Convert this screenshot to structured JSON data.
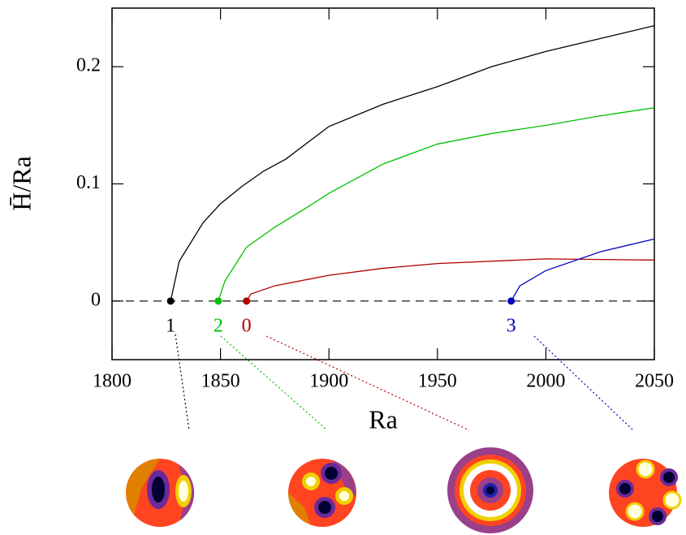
{
  "chart_data": {
    "type": "line",
    "xlabel": "Ra",
    "ylabel": "H̄/Ra",
    "xlim": [
      1800,
      2050
    ],
    "ylim": [
      -0.05,
      0.25
    ],
    "xticks": [
      1800,
      1850,
      1900,
      1950,
      2000,
      2050
    ],
    "yticks": [
      0,
      0.1,
      0.2
    ],
    "series": [
      {
        "name": "1",
        "color": "#000000",
        "x": [
          1827,
          1831,
          1842,
          1850,
          1860,
          1870,
          1880,
          1900,
          1925,
          1950,
          1975,
          2000,
          2025,
          2050
        ],
        "values": [
          0,
          0.034,
          0.067,
          0.083,
          0.098,
          0.111,
          0.121,
          0.149,
          0.168,
          0.183,
          0.2,
          0.213,
          0.224,
          0.235
        ]
      },
      {
        "name": "2",
        "color": "#00c000",
        "x": [
          1849,
          1852,
          1862,
          1875,
          1890,
          1900,
          1925,
          1950,
          1975,
          2000,
          2025,
          2050
        ],
        "values": [
          0,
          0.017,
          0.046,
          0.063,
          0.08,
          0.092,
          0.117,
          0.134,
          0.143,
          0.15,
          0.158,
          0.165
        ]
      },
      {
        "name": "0",
        "color": "#b00000",
        "x": [
          1862,
          1864,
          1875,
          1900,
          1925,
          1950,
          2000,
          2050
        ],
        "values": [
          0,
          0.006,
          0.013,
          0.022,
          0.028,
          0.032,
          0.036,
          0.035
        ]
      },
      {
        "name": "3",
        "color": "#0000c0",
        "x": [
          1984,
          1988,
          2000,
          2025,
          2050
        ],
        "values": [
          0,
          0.013,
          0.026,
          0.042,
          0.053
        ]
      }
    ]
  }
}
